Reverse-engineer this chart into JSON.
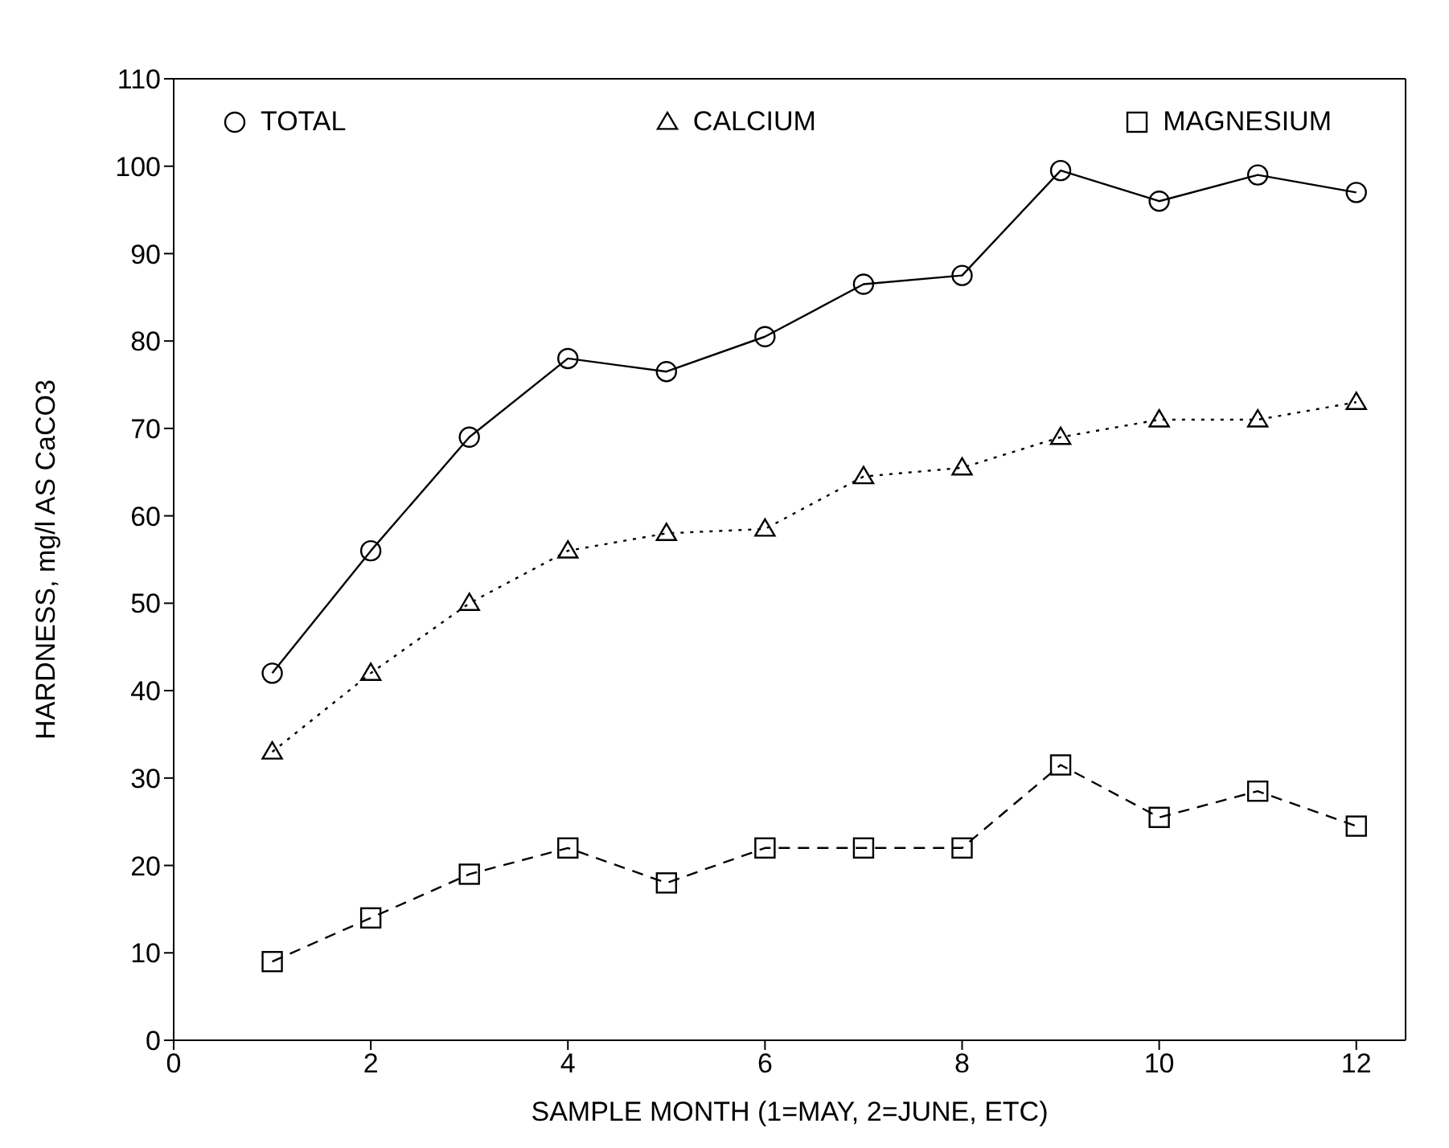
{
  "chart_data": {
    "type": "line",
    "xlabel": "SAMPLE MONTH  (1=MAY, 2=JUNE, ETC)",
    "ylabel": "HARDNESS, mg/l AS CaCO3",
    "x": [
      1,
      2,
      3,
      4,
      5,
      6,
      7,
      8,
      9,
      10,
      11,
      12
    ],
    "xlim": [
      0,
      12.5
    ],
    "xticks": [
      0,
      2,
      4,
      6,
      8,
      10,
      12
    ],
    "ylim": [
      0,
      110
    ],
    "yticks": [
      0,
      10,
      20,
      30,
      40,
      50,
      60,
      70,
      80,
      90,
      100,
      110
    ],
    "grid": false,
    "legend": "top",
    "series": [
      {
        "name": "TOTAL",
        "color": "#000000",
        "marker": "circle",
        "line_style": "solid",
        "values": [
          42,
          56,
          69,
          78,
          76.5,
          80.5,
          86.5,
          87.5,
          99.5,
          96,
          99,
          97
        ]
      },
      {
        "name": "CALCIUM",
        "color": "#000000",
        "marker": "triangle",
        "line_style": "dotted",
        "values": [
          33,
          42,
          50,
          56,
          58,
          58.5,
          64.5,
          65.5,
          69,
          71,
          71,
          73
        ]
      },
      {
        "name": "MAGNESIUM",
        "color": "#000000",
        "marker": "square",
        "line_style": "dashed",
        "values": [
          9,
          14,
          19,
          22,
          18,
          22,
          22,
          22,
          31.5,
          25.5,
          28.5,
          24.5
        ]
      }
    ]
  }
}
